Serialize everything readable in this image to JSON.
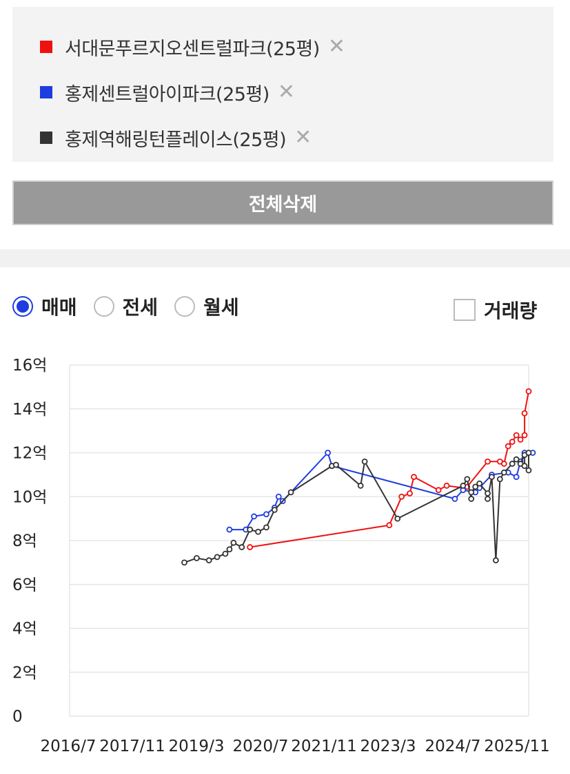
{
  "legend": {
    "items": [
      {
        "color": "#ee1111",
        "label": "서대문푸르지오센트럴파크(25평)",
        "remove": "✕"
      },
      {
        "color": "#1e3de0",
        "label": "홍제센트럴아이파크(25평)",
        "remove": "✕"
      },
      {
        "color": "#333333",
        "label": "홍제역해링턴플레이스(25평)",
        "remove": "✕"
      }
    ]
  },
  "clear_button": "전체삭제",
  "trade_types": [
    {
      "label": "매매",
      "selected": true
    },
    {
      "label": "전세",
      "selected": false
    },
    {
      "label": "월세",
      "selected": false
    }
  ],
  "volume_checkbox": {
    "label": "거래량",
    "checked": false
  },
  "chart_data": {
    "type": "line",
    "title": "",
    "xlabel": "",
    "ylabel": "",
    "y_ticks": [
      "0",
      "2억",
      "4억",
      "6억",
      "8억",
      "10억",
      "12억",
      "14억",
      "16억"
    ],
    "x_ticks": [
      "2016/7",
      "2017/11",
      "2019/3",
      "2020/7",
      "2021/11",
      "2023/3",
      "2024/7",
      "2025/11"
    ],
    "ylim": [
      0,
      16
    ],
    "xlim": [
      "2016-07",
      "2025-11"
    ],
    "y_unit": "억",
    "grid": true,
    "series": [
      {
        "name": "서대문푸르지오센트럴파크(25평)",
        "color": "#ee1111",
        "points": [
          [
            "2020-03",
            7.7
          ],
          [
            "2023-01",
            8.7
          ],
          [
            "2023-04",
            10.0
          ],
          [
            "2023-06",
            10.15
          ],
          [
            "2023-07",
            10.9
          ],
          [
            "2024-01",
            10.3
          ],
          [
            "2024-03",
            10.5
          ],
          [
            "2024-07",
            10.4
          ],
          [
            "2024-08",
            10.45
          ],
          [
            "2025-01",
            11.6
          ],
          [
            "2025-04",
            11.6
          ],
          [
            "2025-05",
            11.5
          ],
          [
            "2025-06",
            12.3
          ],
          [
            "2025-07",
            12.5
          ],
          [
            "2025-08",
            12.8
          ],
          [
            "2025-09",
            12.6
          ],
          [
            "2025-10",
            12.8
          ],
          [
            "2025-10",
            13.8
          ],
          [
            "2025-11",
            14.8
          ]
        ]
      },
      {
        "name": "홍제센트럴아이파크(25평)",
        "color": "#1e3de0",
        "points": [
          [
            "2019-10",
            8.5
          ],
          [
            "2020-02",
            8.5
          ],
          [
            "2020-04",
            9.1
          ],
          [
            "2020-07",
            9.2
          ],
          [
            "2020-09",
            9.5
          ],
          [
            "2020-10",
            10.0
          ],
          [
            "2020-11",
            9.8
          ],
          [
            "2021-10",
            12.0
          ],
          [
            "2021-11",
            11.4
          ],
          [
            "2024-05",
            9.9
          ],
          [
            "2024-07",
            10.3
          ],
          [
            "2024-10",
            10.2
          ],
          [
            "2024-11",
            10.4
          ],
          [
            "2025-02",
            11.0
          ],
          [
            "2025-06",
            11.1
          ],
          [
            "2025-08",
            10.9
          ],
          [
            "2025-09",
            11.6
          ],
          [
            "2025-10",
            12.0
          ],
          [
            "2025-12",
            12.0
          ]
        ]
      },
      {
        "name": "홍제역해링턴플레이스(25평)",
        "color": "#333333",
        "points": [
          [
            "2018-11",
            7.0
          ],
          [
            "2019-02",
            7.2
          ],
          [
            "2019-05",
            7.1
          ],
          [
            "2019-07",
            7.25
          ],
          [
            "2019-09",
            7.4
          ],
          [
            "2019-10",
            7.6
          ],
          [
            "2019-11",
            7.9
          ],
          [
            "2020-01",
            7.7
          ],
          [
            "2020-03",
            8.5
          ],
          [
            "2020-05",
            8.4
          ],
          [
            "2020-07",
            8.6
          ],
          [
            "2020-09",
            9.4
          ],
          [
            "2021-01",
            10.2
          ],
          [
            "2021-11",
            11.4
          ],
          [
            "2021-12",
            11.45
          ],
          [
            "2022-06",
            10.5
          ],
          [
            "2022-07",
            11.6
          ],
          [
            "2023-03",
            9.0
          ],
          [
            "2024-07",
            10.5
          ],
          [
            "2024-08",
            10.8
          ],
          [
            "2024-09",
            9.9
          ],
          [
            "2024-09",
            10.2
          ],
          [
            "2024-10",
            10.45
          ],
          [
            "2024-11",
            10.6
          ],
          [
            "2025-01",
            10.15
          ],
          [
            "2025-01",
            9.9
          ],
          [
            "2025-02",
            10.9
          ],
          [
            "2025-03",
            7.1
          ],
          [
            "2025-04",
            10.8
          ],
          [
            "2025-05",
            11.1
          ],
          [
            "2025-07",
            11.5
          ],
          [
            "2025-08",
            11.7
          ],
          [
            "2025-09",
            11.5
          ],
          [
            "2025-10",
            11.9
          ],
          [
            "2025-10",
            11.4
          ],
          [
            "2025-11",
            11.2
          ],
          [
            "2025-11",
            12.0
          ]
        ]
      }
    ]
  }
}
